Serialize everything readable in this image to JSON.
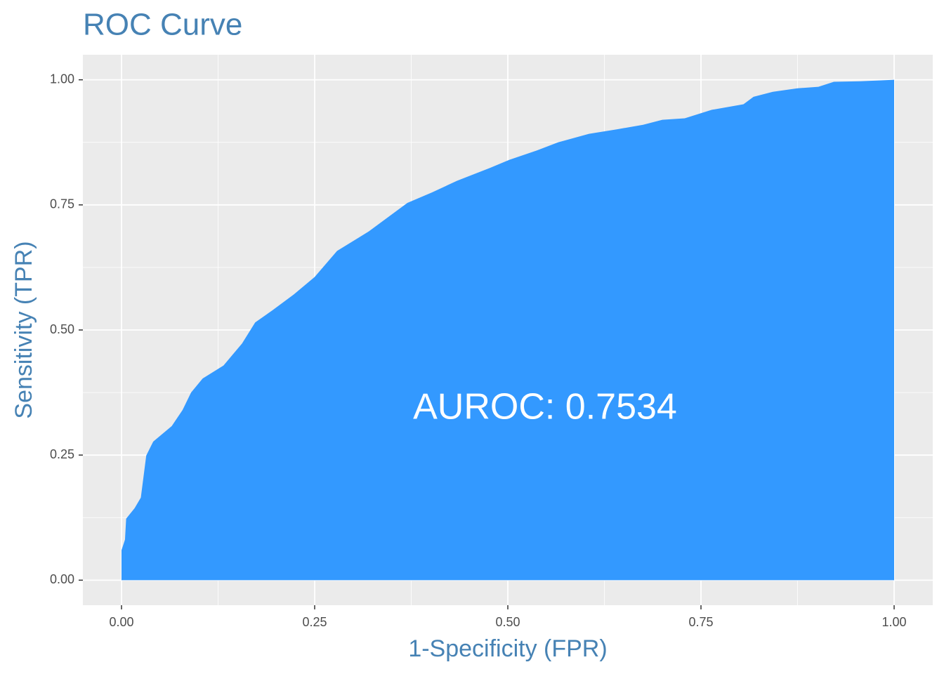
{
  "chart_data": {
    "type": "area",
    "title": "ROC Curve",
    "x_label": "1-Specificity (FPR)",
    "y_label": "Sensitivity (TPR)",
    "annotation": "AUROC: 0.7534",
    "x": [
      0,
      0,
      0.0045,
      0.006,
      0.017,
      0.025,
      0.032,
      0.041,
      0.065,
      0.079,
      0.09,
      0.105,
      0.132,
      0.156,
      0.173,
      0.195,
      0.223,
      0.25,
      0.279,
      0.32,
      0.37,
      0.402,
      0.434,
      0.477,
      0.502,
      0.538,
      0.565,
      0.605,
      0.641,
      0.675,
      0.7,
      0.729,
      0.764,
      0.805,
      0.818,
      0.843,
      0.875,
      0.902,
      0.922,
      0.956,
      1
    ],
    "values": [
      0,
      0.06,
      0.081,
      0.123,
      0.144,
      0.165,
      0.249,
      0.277,
      0.308,
      0.34,
      0.375,
      0.403,
      0.429,
      0.473,
      0.515,
      0.539,
      0.571,
      0.606,
      0.658,
      0.697,
      0.754,
      0.775,
      0.798,
      0.824,
      0.84,
      0.859,
      0.875,
      0.892,
      0.901,
      0.91,
      0.92,
      0.923,
      0.94,
      0.951,
      0.966,
      0.976,
      0.983,
      0.986,
      0.996,
      0.997,
      1
    ],
    "color": "#3399ff",
    "xlim": [
      -0.05,
      1.05
    ],
    "ylim": [
      -0.05,
      1.05
    ],
    "xticks": [
      {
        "value": 0,
        "label": "0.00"
      },
      {
        "value": 0.25,
        "label": "0.25"
      },
      {
        "value": 0.5,
        "label": "0.50"
      },
      {
        "value": 0.75,
        "label": "0.75"
      },
      {
        "value": 1,
        "label": "1.00"
      }
    ],
    "yticks": [
      {
        "value": 0,
        "label": "0.00"
      },
      {
        "value": 0.25,
        "label": "0.25"
      },
      {
        "value": 0.5,
        "label": "0.50"
      },
      {
        "value": 0.75,
        "label": "0.75"
      },
      {
        "value": 1,
        "label": "1.00"
      }
    ],
    "grid": true
  }
}
